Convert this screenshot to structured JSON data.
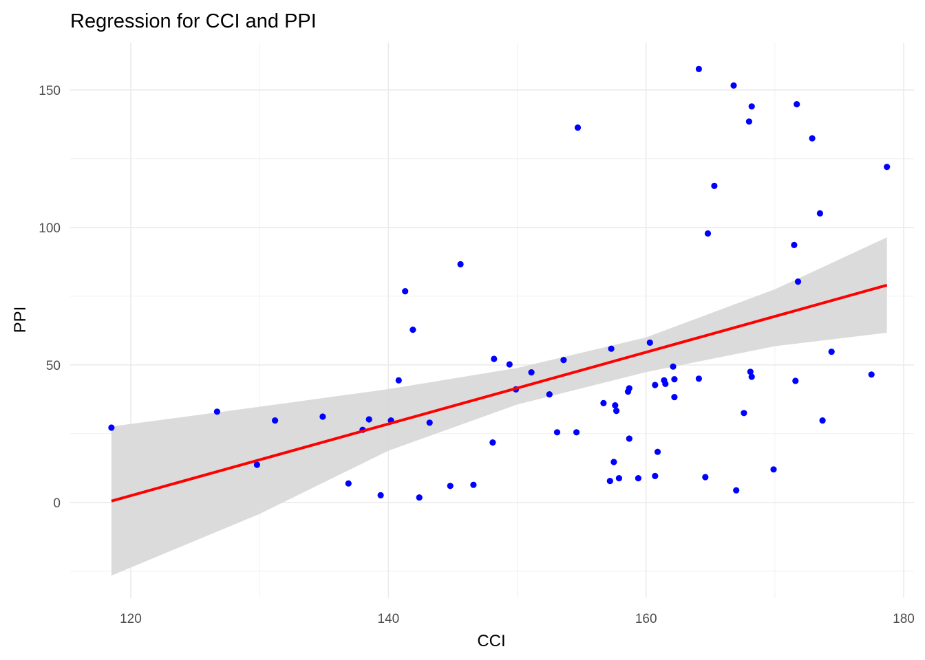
{
  "chart_data": {
    "type": "scatter",
    "title": "Regression for CCI and PPI",
    "xlabel": "CCI",
    "ylabel": "PPI",
    "xlim": [
      115.3,
      180.8
    ],
    "ylim": [
      -34.8,
      167.2
    ],
    "x_ticks": [
      120,
      140,
      160,
      180
    ],
    "y_ticks": [
      0,
      50,
      100,
      150
    ],
    "x_tick_labels": [
      "120",
      "140",
      "160",
      "180"
    ],
    "y_tick_labels": [
      "0",
      "50",
      "100",
      "150"
    ],
    "grid": true,
    "legend": "none",
    "point_color": "#0000ff",
    "fit_color": "#ff0000",
    "band_color": "#d9d9d9",
    "points": [
      [
        118.5,
        27.2
      ],
      [
        126.7,
        33.0
      ],
      [
        129.8,
        13.7
      ],
      [
        131.2,
        29.8
      ],
      [
        134.9,
        31.2
      ],
      [
        136.9,
        6.9
      ],
      [
        138.0,
        26.4
      ],
      [
        138.5,
        30.2
      ],
      [
        139.4,
        2.6
      ],
      [
        140.2,
        29.8
      ],
      [
        140.8,
        44.4
      ],
      [
        141.3,
        76.8
      ],
      [
        141.9,
        62.8
      ],
      [
        142.4,
        1.8
      ],
      [
        143.2,
        29.0
      ],
      [
        144.8,
        6.0
      ],
      [
        145.6,
        86.6
      ],
      [
        146.6,
        6.4
      ],
      [
        148.1,
        21.8
      ],
      [
        148.2,
        52.2
      ],
      [
        149.4,
        50.2
      ],
      [
        149.9,
        41.1
      ],
      [
        151.1,
        47.3
      ],
      [
        152.5,
        39.3
      ],
      [
        153.1,
        25.5
      ],
      [
        153.6,
        51.8
      ],
      [
        154.6,
        25.5
      ],
      [
        154.7,
        136.3
      ],
      [
        156.7,
        36.1
      ],
      [
        157.3,
        55.9
      ],
      [
        157.2,
        7.8
      ],
      [
        157.5,
        14.7
      ],
      [
        157.6,
        35.3
      ],
      [
        157.7,
        33.3
      ],
      [
        157.9,
        8.8
      ],
      [
        158.7,
        23.2
      ],
      [
        158.6,
        40.3
      ],
      [
        158.7,
        41.5
      ],
      [
        159.4,
        8.8
      ],
      [
        160.3,
        58.1
      ],
      [
        160.7,
        42.7
      ],
      [
        160.7,
        9.6
      ],
      [
        160.9,
        18.4
      ],
      [
        161.4,
        44.4
      ],
      [
        161.5,
        43.1
      ],
      [
        162.1,
        49.4
      ],
      [
        162.2,
        38.3
      ],
      [
        162.2,
        44.8
      ],
      [
        164.1,
        157.6
      ],
      [
        164.1,
        45.0
      ],
      [
        164.6,
        9.2
      ],
      [
        164.8,
        97.8
      ],
      [
        165.3,
        115.1
      ],
      [
        166.8,
        151.6
      ],
      [
        167.0,
        4.4
      ],
      [
        167.6,
        32.5
      ],
      [
        168.0,
        138.5
      ],
      [
        168.1,
        47.5
      ],
      [
        168.2,
        45.7
      ],
      [
        168.2,
        144.0
      ],
      [
        169.9,
        12.0
      ],
      [
        171.5,
        93.6
      ],
      [
        171.6,
        44.2
      ],
      [
        171.7,
        144.8
      ],
      [
        171.8,
        80.3
      ],
      [
        172.9,
        132.4
      ],
      [
        173.5,
        105.1
      ],
      [
        173.7,
        29.8
      ],
      [
        174.4,
        54.8
      ],
      [
        177.5,
        46.5
      ],
      [
        178.7,
        122.0
      ]
    ],
    "fit_line": {
      "x": [
        118.5,
        178.7
      ],
      "y": [
        0.5,
        79.0
      ]
    },
    "confidence_band": {
      "x": [
        118.5,
        130,
        140,
        150,
        160,
        170,
        178.7
      ],
      "upper": [
        27.6,
        34.8,
        41.2,
        48.9,
        60.0,
        77.5,
        96.4
      ],
      "lower": [
        -26.6,
        -4.2,
        18.8,
        35.6,
        47.4,
        56.8,
        61.7
      ]
    }
  }
}
